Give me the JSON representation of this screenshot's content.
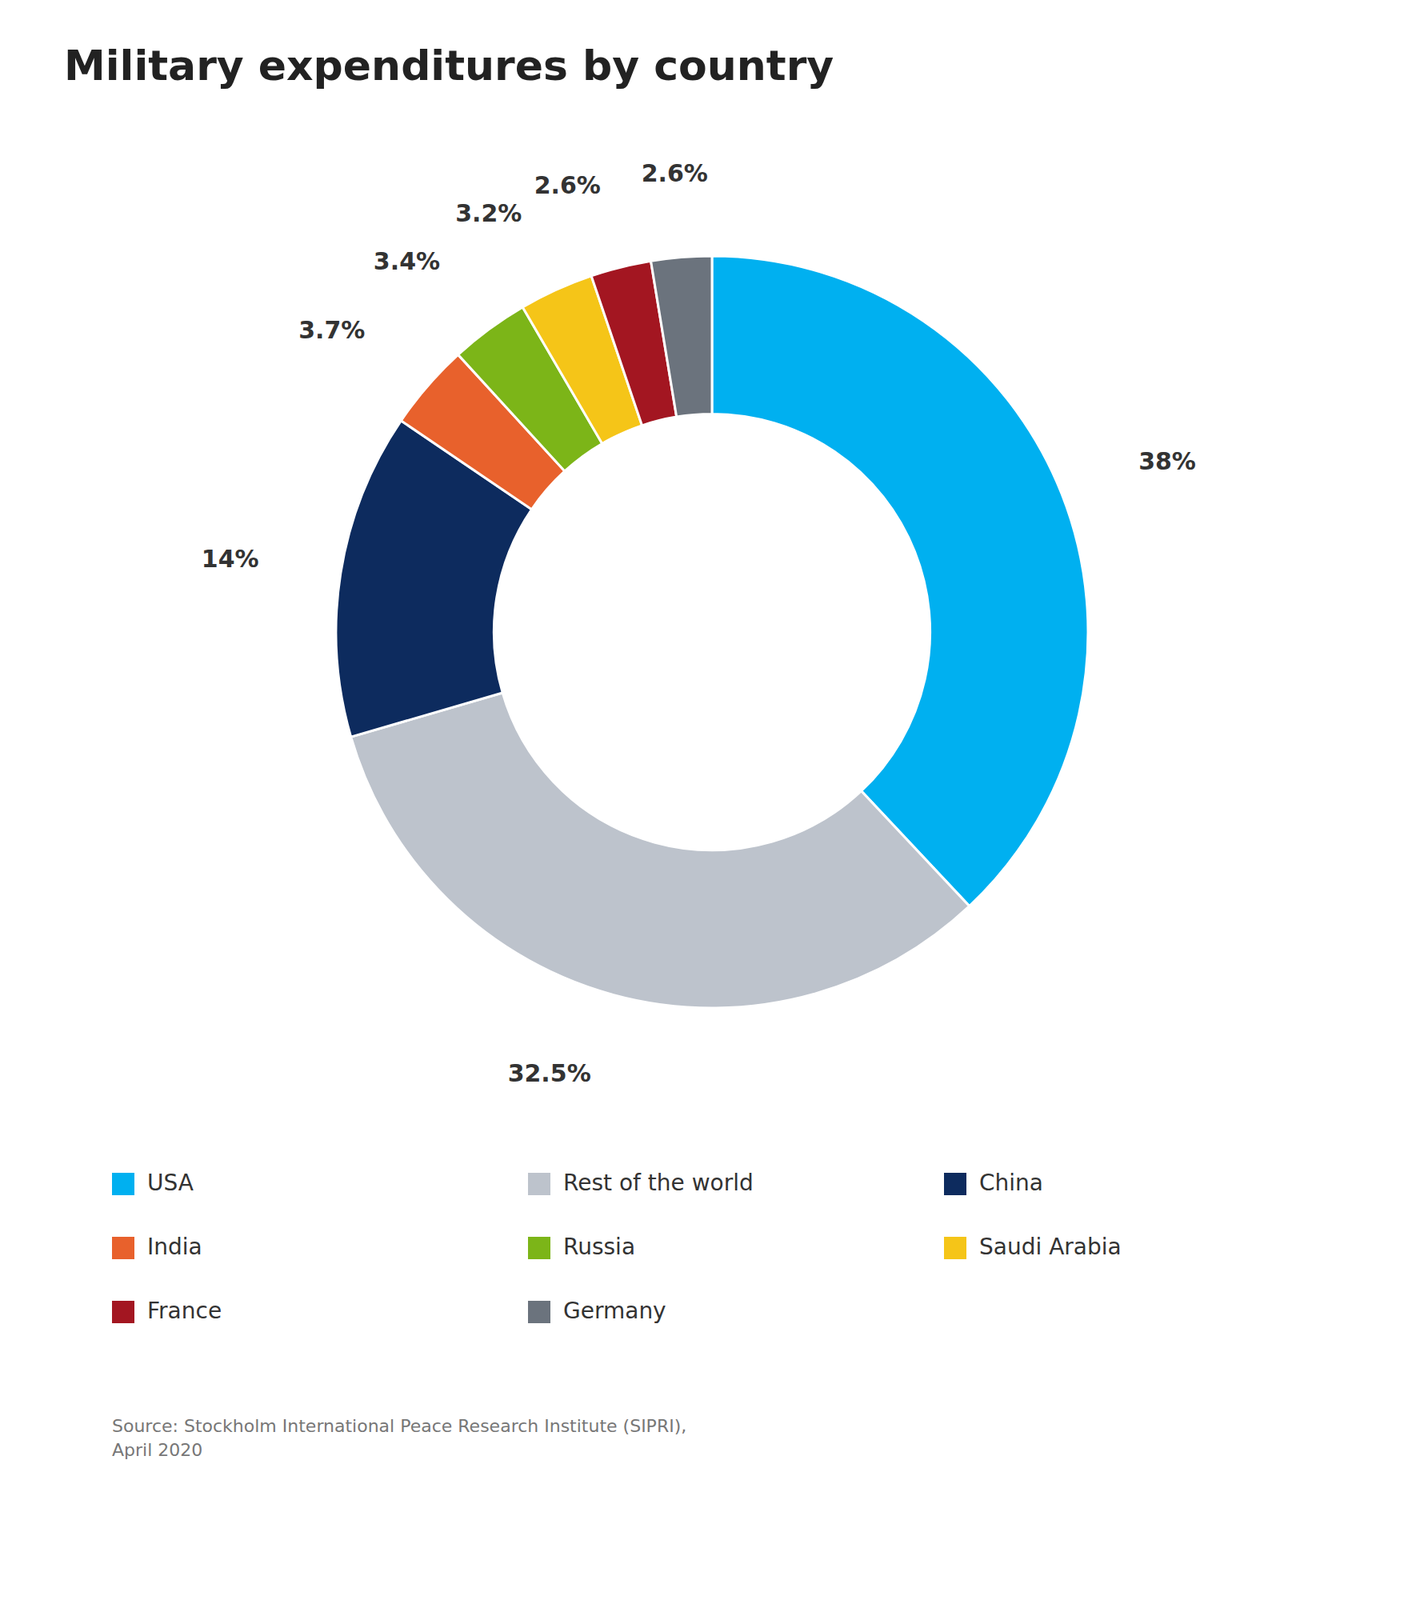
{
  "chart_data": {
    "type": "donut",
    "title": "Military expenditures by country",
    "categories": [
      "USA",
      "Rest of the world",
      "China",
      "India",
      "Russia",
      "Saudi Arabia",
      "France",
      "Germany"
    ],
    "values": [
      38.0,
      32.5,
      14.0,
      3.7,
      3.4,
      3.2,
      2.6,
      2.6
    ],
    "value_labels": [
      "38%",
      "32.5%",
      "14%",
      "3.7%",
      "3.4%",
      "3.2%",
      "2.6%",
      "2.6%"
    ],
    "colors": [
      "#00b0f0",
      "#bdc3cc",
      "#0d2b5e",
      "#e8612c",
      "#7cb518",
      "#f5c518",
      "#a31621",
      "#6b737d"
    ],
    "data_labels": true,
    "legend": "bottom",
    "annotations": [
      "Source: Stockholm International Peace Research Institute (SIPRI),\nApril 2020"
    ]
  }
}
